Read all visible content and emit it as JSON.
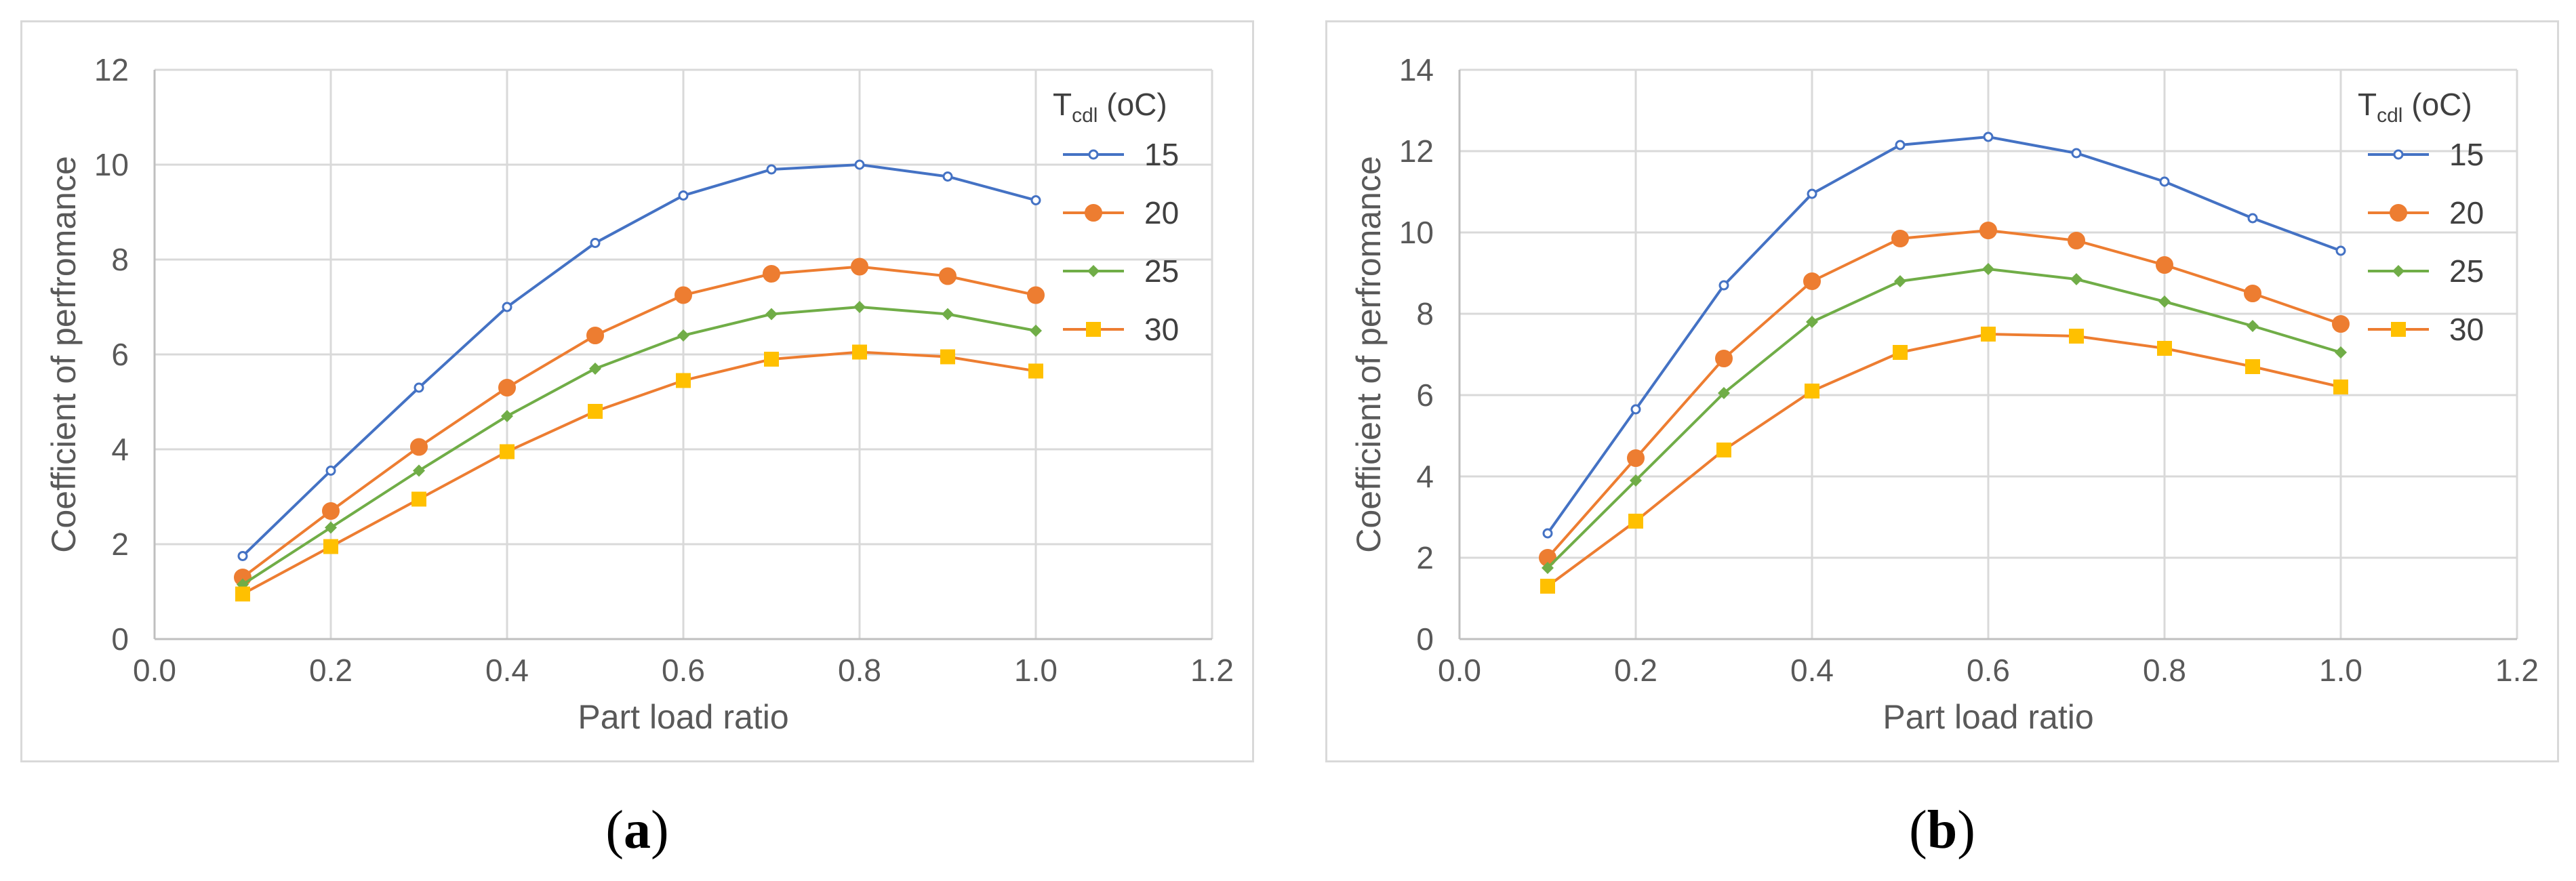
{
  "captions": {
    "a": "a",
    "b": "b"
  },
  "chart_data": [
    {
      "id": "a",
      "type": "line",
      "xlabel": "Part load ratio",
      "ylabel": "Coefficient of perfromance",
      "xlim": [
        0,
        1.2
      ],
      "ylim": [
        0,
        12
      ],
      "x_ticks": [
        "0.0",
        "0.2",
        "0.4",
        "0.6",
        "0.8",
        "1.0",
        "1.2"
      ],
      "y_ticks": [
        "0",
        "2",
        "4",
        "6",
        "8",
        "10",
        "12"
      ],
      "x_tick_values": [
        0,
        0.2,
        0.4,
        0.6,
        0.8,
        1.0,
        1.2
      ],
      "y_tick_values": [
        0,
        2,
        4,
        6,
        8,
        10,
        12
      ],
      "grid": true,
      "legend_title": "T",
      "legend_title_sub": "cdl",
      "legend_title_suffix": " (oC)",
      "legend_position": "right",
      "x": [
        0.1,
        0.2,
        0.3,
        0.4,
        0.5,
        0.6,
        0.7,
        0.8,
        0.9,
        1.0
      ],
      "series": [
        {
          "name": "15",
          "color": "#4472C4",
          "marker": "circle-open",
          "values": [
            1.75,
            3.55,
            5.3,
            7.0,
            8.35,
            9.35,
            9.9,
            10.0,
            9.75,
            9.25
          ]
        },
        {
          "name": "20",
          "color": "#ED7D31",
          "marker": "circle",
          "values": [
            1.3,
            2.7,
            4.05,
            5.3,
            6.4,
            7.25,
            7.7,
            7.85,
            7.65,
            7.25
          ]
        },
        {
          "name": "25",
          "color": "#70AD47",
          "marker": "diamond",
          "values": [
            1.15,
            2.35,
            3.55,
            4.7,
            5.7,
            6.4,
            6.85,
            7.0,
            6.85,
            6.5
          ]
        },
        {
          "name": "30",
          "color": "#FFC000",
          "line_color": "#ED7D31",
          "marker": "square",
          "values": [
            0.95,
            1.95,
            2.95,
            3.95,
            4.8,
            5.45,
            5.9,
            6.05,
            5.95,
            5.65
          ]
        }
      ]
    },
    {
      "id": "b",
      "type": "line",
      "xlabel": "Part load ratio",
      "ylabel": "Coefficient of perfromance",
      "xlim": [
        0,
        1.2
      ],
      "ylim": [
        0,
        14
      ],
      "x_ticks": [
        "0.0",
        "0.2",
        "0.4",
        "0.6",
        "0.8",
        "1.0",
        "1.2"
      ],
      "y_ticks": [
        "0",
        "2",
        "4",
        "6",
        "8",
        "10",
        "12",
        "14"
      ],
      "x_tick_values": [
        0,
        0.2,
        0.4,
        0.6,
        0.8,
        1.0,
        1.2
      ],
      "y_tick_values": [
        0,
        2,
        4,
        6,
        8,
        10,
        12,
        14
      ],
      "grid": true,
      "legend_title": "T",
      "legend_title_sub": "cdl",
      "legend_title_suffix": " (oC)",
      "legend_position": "right",
      "x": [
        0.1,
        0.2,
        0.3,
        0.4,
        0.5,
        0.6,
        0.7,
        0.8,
        0.9,
        1.0
      ],
      "series": [
        {
          "name": "15",
          "color": "#4472C4",
          "marker": "circle-open",
          "values": [
            2.6,
            5.65,
            8.7,
            10.95,
            12.15,
            12.35,
            11.95,
            11.25,
            10.35,
            9.55
          ]
        },
        {
          "name": "20",
          "color": "#ED7D31",
          "marker": "circle",
          "values": [
            2.0,
            4.45,
            6.9,
            8.8,
            9.85,
            10.05,
            9.8,
            9.2,
            8.5,
            7.75
          ]
        },
        {
          "name": "25",
          "color": "#70AD47",
          "marker": "diamond",
          "values": [
            1.75,
            3.9,
            6.05,
            7.8,
            8.8,
            9.1,
            8.85,
            8.3,
            7.7,
            7.05
          ]
        },
        {
          "name": "30",
          "color": "#FFC000",
          "line_color": "#ED7D31",
          "marker": "square",
          "values": [
            1.3,
            2.9,
            4.65,
            6.1,
            7.05,
            7.5,
            7.45,
            7.15,
            6.7,
            6.2
          ]
        }
      ]
    }
  ]
}
